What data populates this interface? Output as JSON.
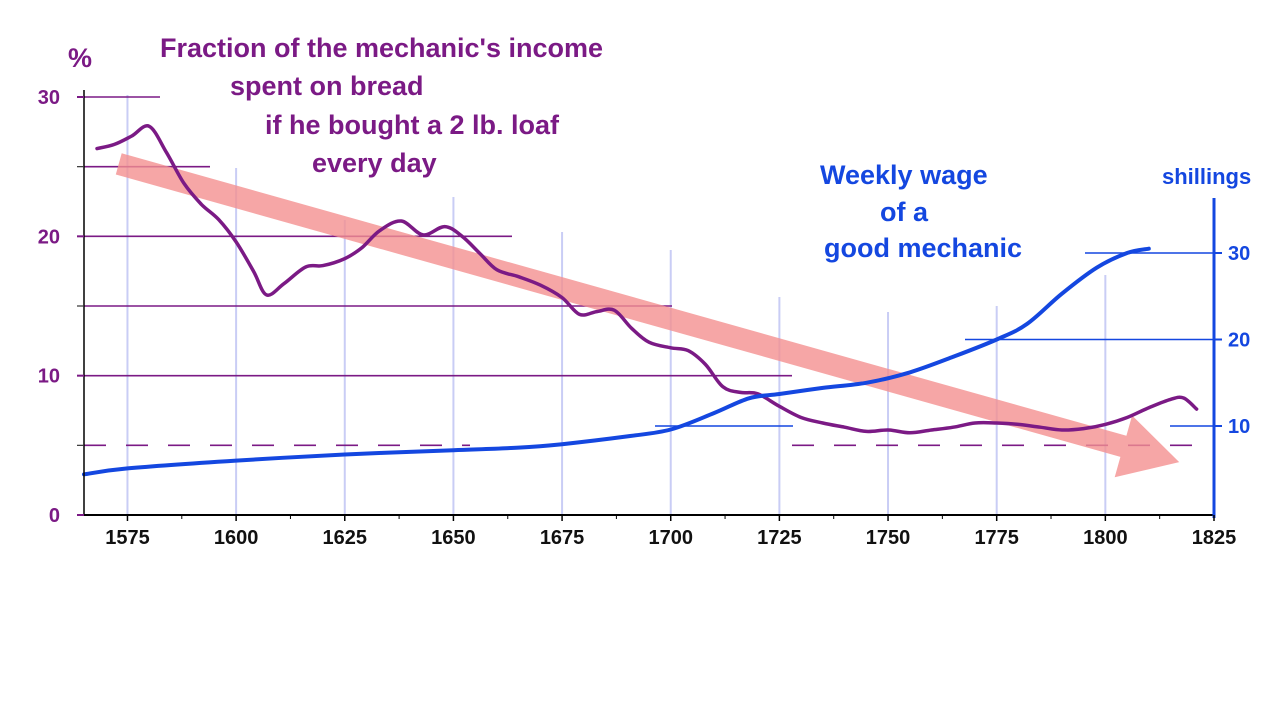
{
  "colors": {
    "bread": "#7b1a85",
    "wage": "#1447e0",
    "trend": "#f49090",
    "grid": "#c9cdf5"
  },
  "chart_data": {
    "type": "line",
    "title": "",
    "xlabel": "",
    "x_ticks": [
      1575,
      1600,
      1625,
      1650,
      1675,
      1700,
      1725,
      1750,
      1775,
      1800,
      1825
    ],
    "xlim": [
      1565,
      1825
    ],
    "left_axis": {
      "label": "%",
      "ylim": [
        0,
        30
      ],
      "ticks": [
        0,
        10,
        20,
        30
      ]
    },
    "right_axis": {
      "label": "shillings",
      "ylim": [
        0,
        37
      ],
      "ticks": [
        10,
        20,
        30
      ]
    },
    "series": [
      {
        "name": "Fraction of the mechanic's income spent on bread if he bought a 2 lb. loaf every day",
        "axis": "left",
        "points": [
          [
            1568,
            26.3
          ],
          [
            1572,
            26.6
          ],
          [
            1576,
            27.2
          ],
          [
            1580,
            27.9
          ],
          [
            1584,
            26.0
          ],
          [
            1588,
            23.8
          ],
          [
            1592,
            22.3
          ],
          [
            1596,
            21.2
          ],
          [
            1600,
            19.6
          ],
          [
            1604,
            17.5
          ],
          [
            1607,
            15.8
          ],
          [
            1611,
            16.6
          ],
          [
            1616,
            17.8
          ],
          [
            1620,
            17.9
          ],
          [
            1625,
            18.4
          ],
          [
            1629,
            19.2
          ],
          [
            1633,
            20.4
          ],
          [
            1638,
            21.1
          ],
          [
            1643,
            20.1
          ],
          [
            1648,
            20.7
          ],
          [
            1652,
            20.0
          ],
          [
            1656,
            18.8
          ],
          [
            1660,
            17.6
          ],
          [
            1665,
            17.1
          ],
          [
            1670,
            16.5
          ],
          [
            1675,
            15.6
          ],
          [
            1679,
            14.4
          ],
          [
            1683,
            14.6
          ],
          [
            1687,
            14.7
          ],
          [
            1691,
            13.4
          ],
          [
            1695,
            12.4
          ],
          [
            1700,
            12.0
          ],
          [
            1704,
            11.8
          ],
          [
            1708,
            10.8
          ],
          [
            1712,
            9.2
          ],
          [
            1716,
            8.8
          ],
          [
            1720,
            8.7
          ],
          [
            1725,
            7.8
          ],
          [
            1730,
            7.0
          ],
          [
            1735,
            6.6
          ],
          [
            1740,
            6.3
          ],
          [
            1745,
            6.0
          ],
          [
            1750,
            6.1
          ],
          [
            1755,
            5.9
          ],
          [
            1760,
            6.1
          ],
          [
            1765,
            6.3
          ],
          [
            1770,
            6.6
          ],
          [
            1775,
            6.6
          ],
          [
            1780,
            6.5
          ],
          [
            1785,
            6.3
          ],
          [
            1790,
            6.1
          ],
          [
            1795,
            6.2
          ],
          [
            1800,
            6.5
          ],
          [
            1805,
            7.0
          ],
          [
            1810,
            7.7
          ],
          [
            1815,
            8.3
          ],
          [
            1818,
            8.4
          ],
          [
            1821,
            7.6
          ]
        ]
      },
      {
        "name": "Weekly wage of a good mechanic",
        "axis": "right",
        "points": [
          [
            1565,
            4.4
          ],
          [
            1575,
            5.1
          ],
          [
            1600,
            6.0
          ],
          [
            1625,
            6.7
          ],
          [
            1650,
            7.2
          ],
          [
            1665,
            7.5
          ],
          [
            1675,
            7.9
          ],
          [
            1690,
            8.8
          ],
          [
            1700,
            9.6
          ],
          [
            1710,
            11.5
          ],
          [
            1718,
            13.2
          ],
          [
            1725,
            13.7
          ],
          [
            1735,
            14.4
          ],
          [
            1745,
            15.0
          ],
          [
            1755,
            16.2
          ],
          [
            1765,
            18.0
          ],
          [
            1775,
            20.0
          ],
          [
            1782,
            21.8
          ],
          [
            1790,
            25.3
          ],
          [
            1798,
            28.3
          ],
          [
            1805,
            30.0
          ],
          [
            1810,
            30.5
          ]
        ]
      }
    ],
    "trend_arrow": {
      "from": [
        1573,
        25.2
      ],
      "to": [
        1817,
        3.8
      ],
      "label": ""
    },
    "annotations": {
      "percent_unit": "%",
      "shillings_unit": "shillings",
      "bread_label": [
        "Fraction of the mechanic's income",
        "spent on bread",
        "if he bought a 2 lb. loaf",
        "every day"
      ],
      "wage_label": [
        "Weekly wage",
        "of a",
        "good mechanic"
      ]
    }
  }
}
